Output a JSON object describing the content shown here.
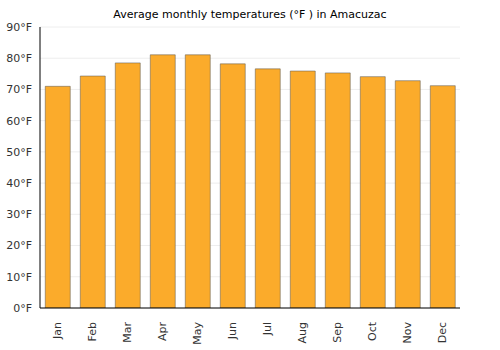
{
  "chart_data": {
    "type": "bar",
    "title": "Average monthly temperatures (°F ) in Amacuzac",
    "categories": [
      "Jan",
      "Feb",
      "Mar",
      "Apr",
      "May",
      "Jun",
      "Jul",
      "Aug",
      "Sep",
      "Oct",
      "Nov",
      "Dec"
    ],
    "values": [
      71,
      74.3,
      78.5,
      81.1,
      81.1,
      78.2,
      76.6,
      75.9,
      75.3,
      74.1,
      72.8,
      71.2
    ],
    "color": "#fbab2b",
    "ylim": [
      0,
      90
    ],
    "yticks": [
      {
        "value": 0,
        "label": "0°F"
      },
      {
        "value": 10,
        "label": "10°F"
      },
      {
        "value": 20,
        "label": "20°F"
      },
      {
        "value": 30,
        "label": "30°F"
      },
      {
        "value": 40,
        "label": "40°F"
      },
      {
        "value": 50,
        "label": "50°F"
      },
      {
        "value": 60,
        "label": "60°F"
      },
      {
        "value": 70,
        "label": "70°F"
      },
      {
        "value": 80,
        "label": "80°F"
      },
      {
        "value": 90,
        "label": "90°F"
      }
    ],
    "grid": true
  }
}
